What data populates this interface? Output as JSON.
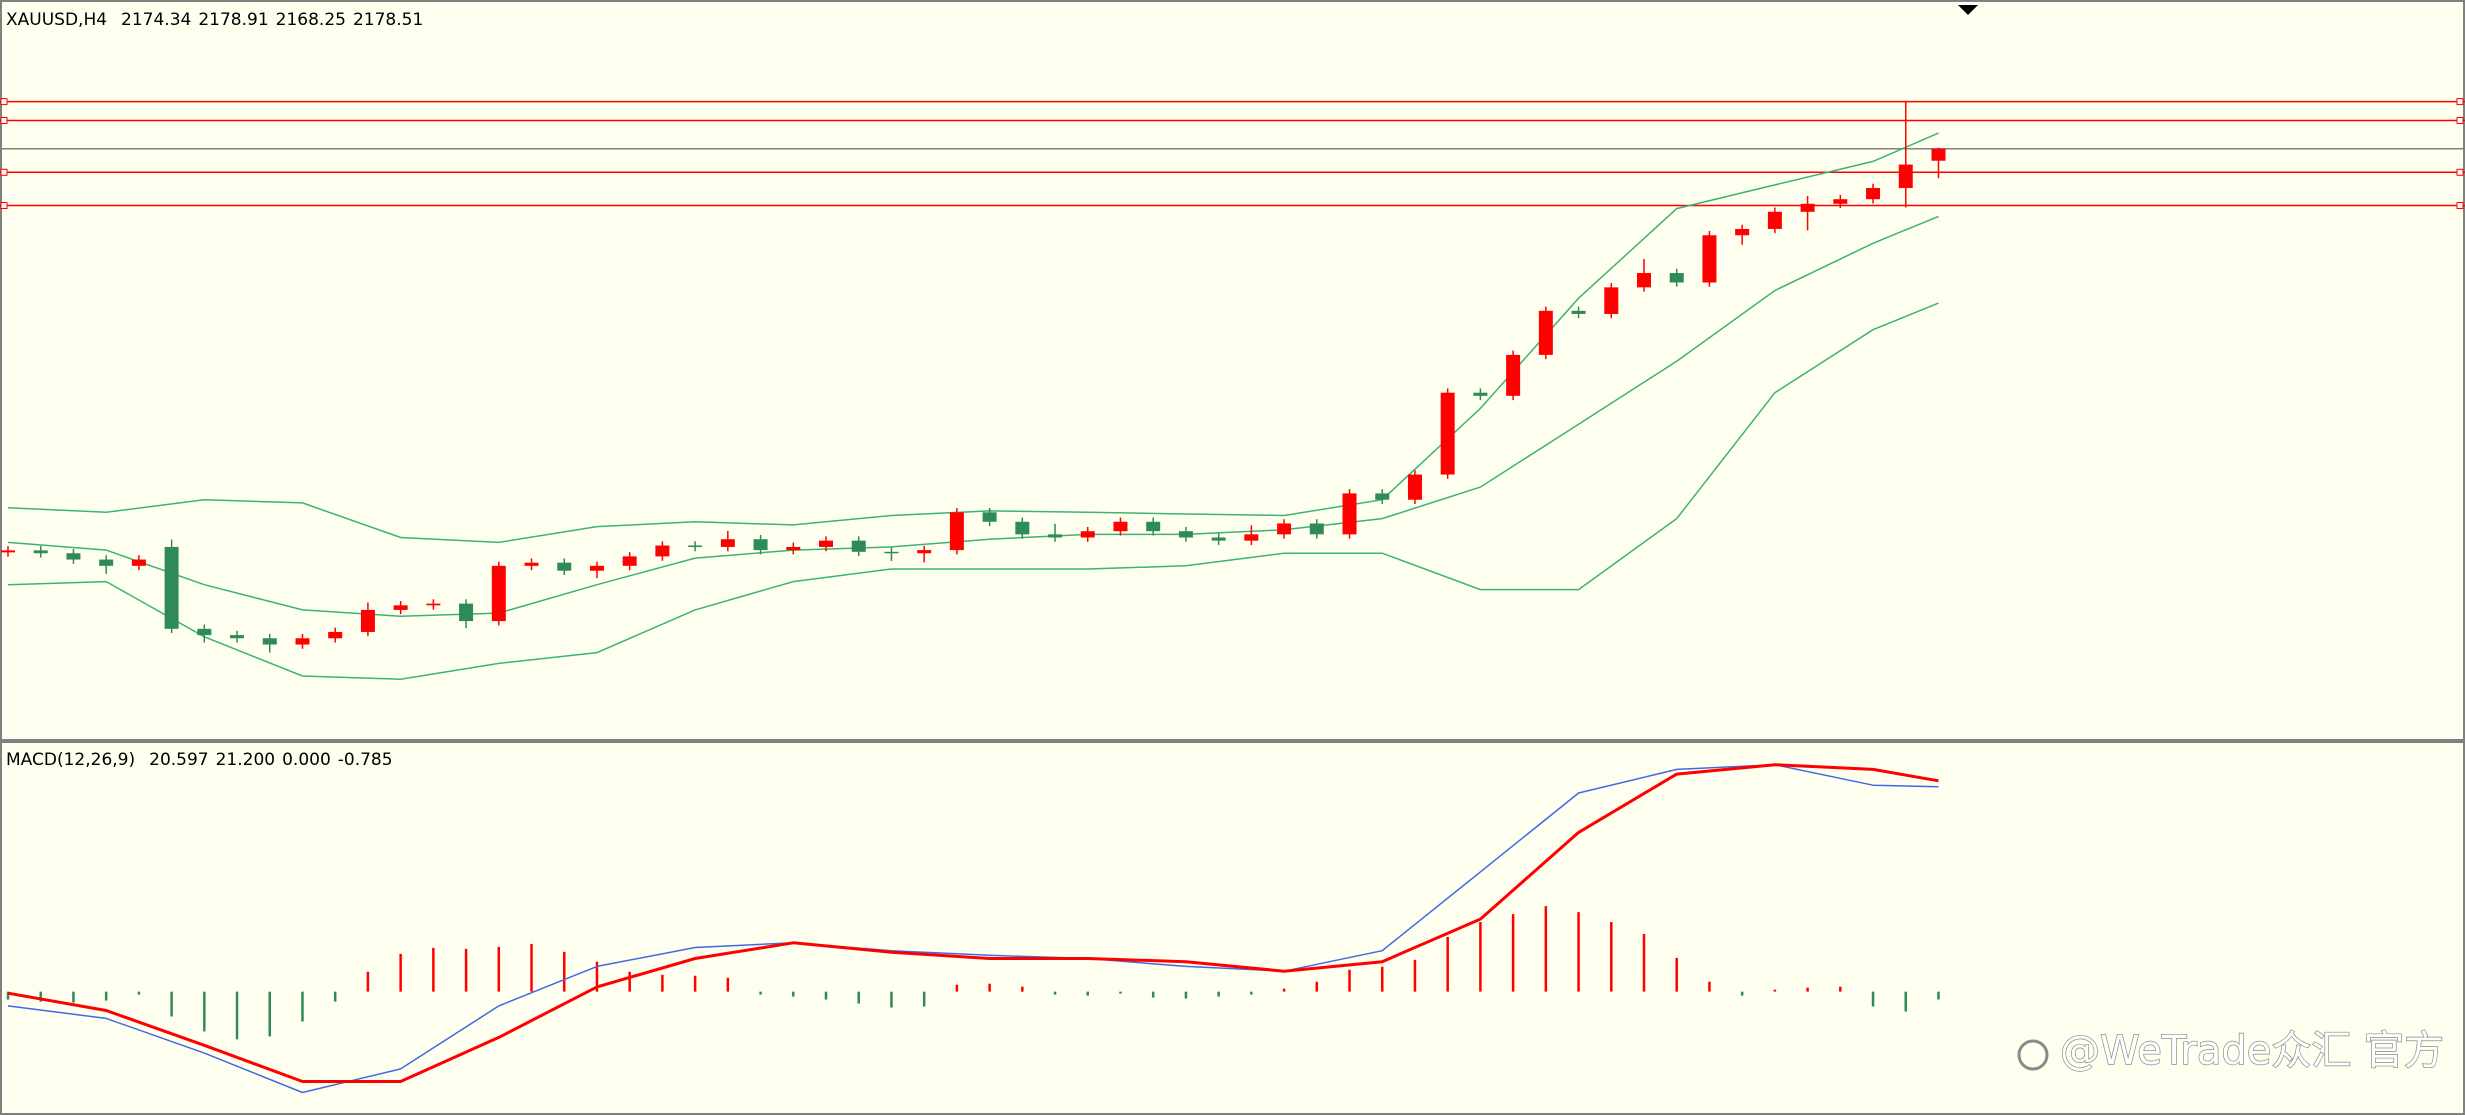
{
  "chart_data": [
    {
      "type": "candlestick",
      "title": "XAUUSD,H4",
      "up_color": "#ff0000",
      "down_color": "#2e8b57",
      "ylim": [
        1972.3,
        2229.1
      ],
      "ohlc": [
        [
          2037.5,
          2039.7,
          2036.0,
          2038.2
        ],
        [
          2038.2,
          2039.7,
          2035.7,
          2037.2
        ],
        [
          2037.2,
          2038.7,
          2033.5,
          2035.0
        ],
        [
          2035.0,
          2036.5,
          2030.0,
          2032.8
        ],
        [
          2032.8,
          2036.5,
          2031.3,
          2035.0
        ],
        [
          2039.4,
          2042.0,
          2009.3,
          2010.8
        ],
        [
          2010.8,
          2012.3,
          2006.0,
          2008.6
        ],
        [
          2008.6,
          2010.1,
          2006.0,
          2007.5
        ],
        [
          2007.5,
          2009.0,
          2002.5,
          2005.3
        ],
        [
          2005.3,
          2009.0,
          2003.8,
          2007.5
        ],
        [
          2007.5,
          2011.2,
          2006.0,
          2009.7
        ],
        [
          2009.7,
          2020.0,
          2008.2,
          2017.4
        ],
        [
          2017.4,
          2020.5,
          2015.9,
          2019.0
        ],
        [
          2019.0,
          2021.1,
          2017.5,
          2019.6
        ],
        [
          2019.6,
          2021.1,
          2011.0,
          2013.5
        ],
        [
          2013.5,
          2034.3,
          2012.0,
          2032.8
        ],
        [
          2032.8,
          2035.4,
          2031.3,
          2033.9
        ],
        [
          2033.9,
          2035.4,
          2029.6,
          2031.1
        ],
        [
          2031.1,
          2034.3,
          2028.5,
          2032.8
        ],
        [
          2032.8,
          2037.6,
          2031.3,
          2036.1
        ],
        [
          2036.1,
          2041.4,
          2034.6,
          2039.9
        ],
        [
          2039.9,
          2041.4,
          2037.9,
          2039.4
        ],
        [
          2039.4,
          2045.0,
          2037.9,
          2042.1
        ],
        [
          2042.1,
          2043.6,
          2036.8,
          2038.3
        ],
        [
          2038.3,
          2040.9,
          2036.8,
          2039.4
        ],
        [
          2039.4,
          2043.1,
          2037.9,
          2041.6
        ],
        [
          2041.6,
          2043.1,
          2036.2,
          2037.7
        ],
        [
          2037.7,
          2039.2,
          2034.5,
          2037.2
        ],
        [
          2037.2,
          2039.8,
          2034.0,
          2038.3
        ],
        [
          2038.3,
          2053.0,
          2036.8,
          2051.5
        ],
        [
          2051.5,
          2053.0,
          2046.7,
          2048.2
        ],
        [
          2048.2,
          2049.7,
          2042.3,
          2043.8
        ],
        [
          2043.8,
          2047.5,
          2041.2,
          2042.7
        ],
        [
          2042.7,
          2046.4,
          2041.2,
          2044.9
        ],
        [
          2044.9,
          2049.7,
          2043.4,
          2048.2
        ],
        [
          2048.2,
          2049.7,
          2043.4,
          2044.9
        ],
        [
          2044.9,
          2046.4,
          2041.2,
          2042.7
        ],
        [
          2042.7,
          2044.2,
          2040.1,
          2041.6
        ],
        [
          2041.6,
          2047.0,
          2040.1,
          2043.8
        ],
        [
          2043.8,
          2049.1,
          2042.3,
          2047.6
        ],
        [
          2047.6,
          2049.1,
          2042.3,
          2043.8
        ],
        [
          2043.8,
          2059.6,
          2042.3,
          2058.1
        ],
        [
          2058.1,
          2059.6,
          2054.4,
          2055.9
        ],
        [
          2055.9,
          2066.2,
          2054.4,
          2064.7
        ],
        [
          2064.7,
          2094.8,
          2063.2,
          2093.3
        ],
        [
          2093.3,
          2094.8,
          2090.7,
          2092.2
        ],
        [
          2092.2,
          2108.0,
          2090.7,
          2106.5
        ],
        [
          2106.5,
          2123.4,
          2105.0,
          2121.9
        ],
        [
          2121.9,
          2123.4,
          2119.3,
          2120.8
        ],
        [
          2120.8,
          2131.6,
          2119.3,
          2130.1
        ],
        [
          2130.1,
          2140.0,
          2128.6,
          2135.1
        ],
        [
          2135.1,
          2136.6,
          2130.3,
          2131.8
        ],
        [
          2131.8,
          2149.8,
          2130.3,
          2148.3
        ],
        [
          2148.3,
          2152.0,
          2145.0,
          2150.5
        ],
        [
          2150.5,
          2158.0,
          2149.0,
          2156.5
        ],
        [
          2156.5,
          2162.0,
          2150.0,
          2159.3
        ],
        [
          2159.3,
          2162.4,
          2157.8,
          2160.9
        ],
        [
          2160.9,
          2166.3,
          2159.4,
          2164.8
        ],
        [
          2164.8,
          2195.0,
          2158.0,
          2173.0
        ],
        [
          2174.34,
          2178.91,
          2168.25,
          2178.51
        ]
      ],
      "bands": {
        "color": "#3cb371",
        "x": [
          0,
          3,
          6,
          9,
          12,
          15,
          18,
          21,
          24,
          27,
          30,
          33,
          36,
          39,
          42,
          45,
          48,
          51,
          54,
          57,
          59
        ],
        "upper": [
          2053.1,
          2051.5,
          2055.9,
          2054.8,
          2042.7,
          2041.0,
          2046.5,
          2048.2,
          2047.1,
          2050.4,
          2052.0,
          2051.5,
          2050.9,
          2050.4,
          2055.9,
          2087.8,
          2126.3,
          2157.6,
          2165.9,
          2174.1,
          2184.0
        ],
        "middle": [
          2041.0,
          2038.3,
          2026.2,
          2017.4,
          2015.2,
          2016.3,
          2026.2,
          2035.5,
          2038.3,
          2039.4,
          2042.1,
          2043.8,
          2043.8,
          2045.4,
          2049.3,
          2060.3,
          2082.3,
          2104.3,
          2129.0,
          2145.5,
          2154.9
        ],
        "lower": [
          2026.2,
          2027.3,
          2008.0,
          1994.3,
          1993.2,
          1998.7,
          2002.5,
          2017.4,
          2027.3,
          2031.7,
          2031.7,
          2031.7,
          2032.8,
          2037.2,
          2037.2,
          2024.5,
          2024.5,
          2049.3,
          2093.3,
          2115.3,
          2124.6
        ]
      },
      "levels": [
        2195.0,
        2188.4,
        2170.3,
        2158.7
      ],
      "level_color": "#ff0000",
      "bid_color": "#808080"
    },
    {
      "type": "macd",
      "title": "MACD(12,26,9)",
      "header_values": [
        {
          "value": 20.597,
          "label": "20.597"
        },
        {
          "value": 21.2,
          "label": "21.200"
        },
        {
          "value": 0,
          "label": "0.000"
        },
        {
          "value": -0.785,
          "label": "-0.785"
        }
      ],
      "ylim": [
        -11.9,
        25.0
      ],
      "x": [
        0,
        3,
        6,
        9,
        12,
        15,
        18,
        21,
        24,
        27,
        30,
        33,
        36,
        39,
        42,
        45,
        48,
        51,
        54,
        57,
        59
      ],
      "macd": [
        -1.43,
        -2.69,
        -6.18,
        -10.14,
        -7.77,
        -1.43,
        2.54,
        4.44,
        4.91,
        4.12,
        3.65,
        3.33,
        2.54,
        2.06,
        4.12,
        12.04,
        19.97,
        22.35,
        22.82,
        20.76,
        20.597
      ],
      "signal": [
        -0.16,
        -1.9,
        -5.39,
        -9.03,
        -9.03,
        -4.6,
        0.48,
        3.33,
        4.91,
        3.96,
        3.33,
        3.33,
        3.01,
        2.06,
        3.01,
        7.29,
        16.01,
        21.87,
        22.82,
        22.35,
        21.2
      ],
      "histogram": [
        -0.8,
        -1.0,
        -1.1,
        -0.9,
        -0.3,
        -2.5,
        -4.0,
        -4.8,
        -4.5,
        -3.0,
        -1.0,
        2.0,
        3.8,
        4.4,
        4.3,
        4.5,
        4.8,
        4.0,
        3.0,
        2.0,
        1.7,
        1.6,
        1.4,
        -0.3,
        -0.5,
        -0.8,
        -1.2,
        -1.6,
        -1.5,
        0.7,
        0.8,
        0.5,
        -0.3,
        -0.4,
        -0.2,
        -0.6,
        -0.7,
        -0.5,
        -0.3,
        0.3,
        1.0,
        2.2,
        2.5,
        3.2,
        5.5,
        7.0,
        7.8,
        8.6,
        8.0,
        7.0,
        5.8,
        3.4,
        1.0,
        -0.4,
        0.2,
        0.4,
        0.5,
        -1.5,
        -2.0,
        -0.785
      ],
      "macd_color": "#4169e1",
      "signal_color": "#ff0000",
      "hist_up_color": "#ff0000",
      "hist_down_color": "#2e8b57"
    }
  ],
  "watermark": "@WeTrade众汇 官方"
}
